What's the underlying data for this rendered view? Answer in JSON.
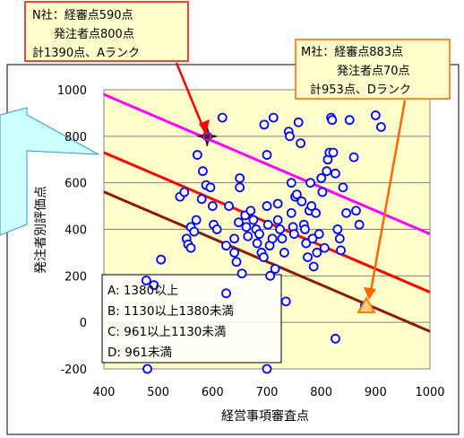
{
  "chart_data": {
    "type": "scatter",
    "xlabel": "経営事項審査点",
    "ylabel": "発注者別評価点",
    "xlim": [
      400,
      1000
    ],
    "ylim": [
      -200,
      1000
    ],
    "xticks": [
      "400",
      "500",
      "600",
      "700",
      "800",
      "900",
      "1000"
    ],
    "yticks": [
      "-200",
      "0",
      "200",
      "400",
      "600",
      "800",
      "1000"
    ],
    "grid": "y-major",
    "rank_legend": [
      "A: 1380以上",
      "B: 1130以上1380未満",
      "C: 961以上1130未満",
      "D: 961未満"
    ],
    "threshold_lines": [
      {
        "total": 1380,
        "color": "#ff00ff",
        "x": [
          400,
          1000
        ],
        "y": [
          980,
          380
        ]
      },
      {
        "total": 1130,
        "color": "#ff0000",
        "x": [
          400,
          1000
        ],
        "y": [
          730,
          130
        ]
      },
      {
        "total": 961,
        "color": "#8b1a00",
        "x": [
          400,
          1000
        ],
        "y": [
          561,
          -39
        ]
      }
    ],
    "points": [
      [
        480,
        -200
      ],
      [
        478,
        180
      ],
      [
        492,
        160
      ],
      [
        505,
        270
      ],
      [
        540,
        540
      ],
      [
        548,
        560
      ],
      [
        552,
        360
      ],
      [
        555,
        335
      ],
      [
        560,
        320
      ],
      [
        560,
        410
      ],
      [
        566,
        390
      ],
      [
        570,
        440
      ],
      [
        572,
        720
      ],
      [
        582,
        650
      ],
      [
        588,
        590
      ],
      [
        590,
        800
      ],
      [
        596,
        580
      ],
      [
        600,
        500
      ],
      [
        602,
        420
      ],
      [
        608,
        400
      ],
      [
        618,
        880
      ],
      [
        625,
        330
      ],
      [
        625,
        125
      ],
      [
        630,
        500
      ],
      [
        640,
        360
      ],
      [
        640,
        300
      ],
      [
        644,
        260
      ],
      [
        648,
        430
      ],
      [
        650,
        580
      ],
      [
        654,
        210
      ],
      [
        660,
        460
      ],
      [
        662,
        410
      ],
      [
        665,
        370
      ],
      [
        670,
        480
      ],
      [
        675,
        440
      ],
      [
        680,
        400
      ],
      [
        682,
        340
      ],
      [
        686,
        380
      ],
      [
        690,
        300
      ],
      [
        694,
        280
      ],
      [
        695,
        850
      ],
      [
        700,
        720
      ],
      [
        700,
        500
      ],
      [
        702,
        420
      ],
      [
        705,
        330
      ],
      [
        710,
        360
      ],
      [
        712,
        880
      ],
      [
        715,
        230
      ],
      [
        720,
        440
      ],
      [
        724,
        400
      ],
      [
        728,
        360
      ],
      [
        732,
        300
      ],
      [
        735,
        90
      ],
      [
        740,
        820
      ],
      [
        742,
        800
      ],
      [
        745,
        470
      ],
      [
        748,
        410
      ],
      [
        750,
        380
      ],
      [
        752,
        540
      ],
      [
        755,
        550
      ],
      [
        758,
        860
      ],
      [
        762,
        770
      ],
      [
        764,
        520
      ],
      [
        768,
        420
      ],
      [
        770,
        400
      ],
      [
        772,
        340
      ],
      [
        775,
        280
      ],
      [
        778,
        480
      ],
      [
        780,
        600
      ],
      [
        782,
        500
      ],
      [
        784,
        360
      ],
      [
        786,
        240
      ],
      [
        790,
        470
      ],
      [
        792,
        300
      ],
      [
        796,
        380
      ],
      [
        800,
        620
      ],
      [
        802,
        560
      ],
      [
        806,
        320
      ],
      [
        810,
        650
      ],
      [
        812,
        700
      ],
      [
        815,
        730
      ],
      [
        818,
        880
      ],
      [
        820,
        870
      ],
      [
        822,
        730
      ],
      [
        826,
        640
      ],
      [
        830,
        400
      ],
      [
        834,
        360
      ],
      [
        836,
        310
      ],
      [
        840,
        580
      ],
      [
        846,
        470
      ],
      [
        852,
        870
      ],
      [
        860,
        710
      ],
      [
        864,
        480
      ],
      [
        870,
        420
      ],
      [
        880,
        70
      ],
      [
        900,
        890
      ],
      [
        910,
        840
      ],
      [
        826,
        -70
      ],
      [
        700,
        -200
      ],
      [
        706,
        200
      ],
      [
        720,
        510
      ],
      [
        745,
        600
      ],
      [
        650,
        620
      ],
      [
        580,
        530
      ]
    ],
    "highlights": [
      {
        "name": "N社",
        "x": 590,
        "y": 800,
        "marker": "star",
        "color": "#000000"
      },
      {
        "name": "M社",
        "x": 883,
        "y": 70,
        "marker": "triangle",
        "color": "#f08000"
      }
    ],
    "callouts": [
      {
        "id": "n",
        "lines": [
          "N社：経審点590点",
          "発注者点800点",
          "計1390点、Aランク"
        ]
      },
      {
        "id": "m",
        "lines": [
          "M社：経審点883点",
          "発注者点70点",
          "計953点、Dランク"
        ]
      }
    ]
  },
  "colors": {
    "plot_bg": "#ffffcc",
    "point_stroke": "#0000ff",
    "callout_bg": "#ffffcc",
    "side_callout_bg": "#ccffff",
    "n_arrow": "#ff0000",
    "m_arrow": "#ff6600"
  }
}
